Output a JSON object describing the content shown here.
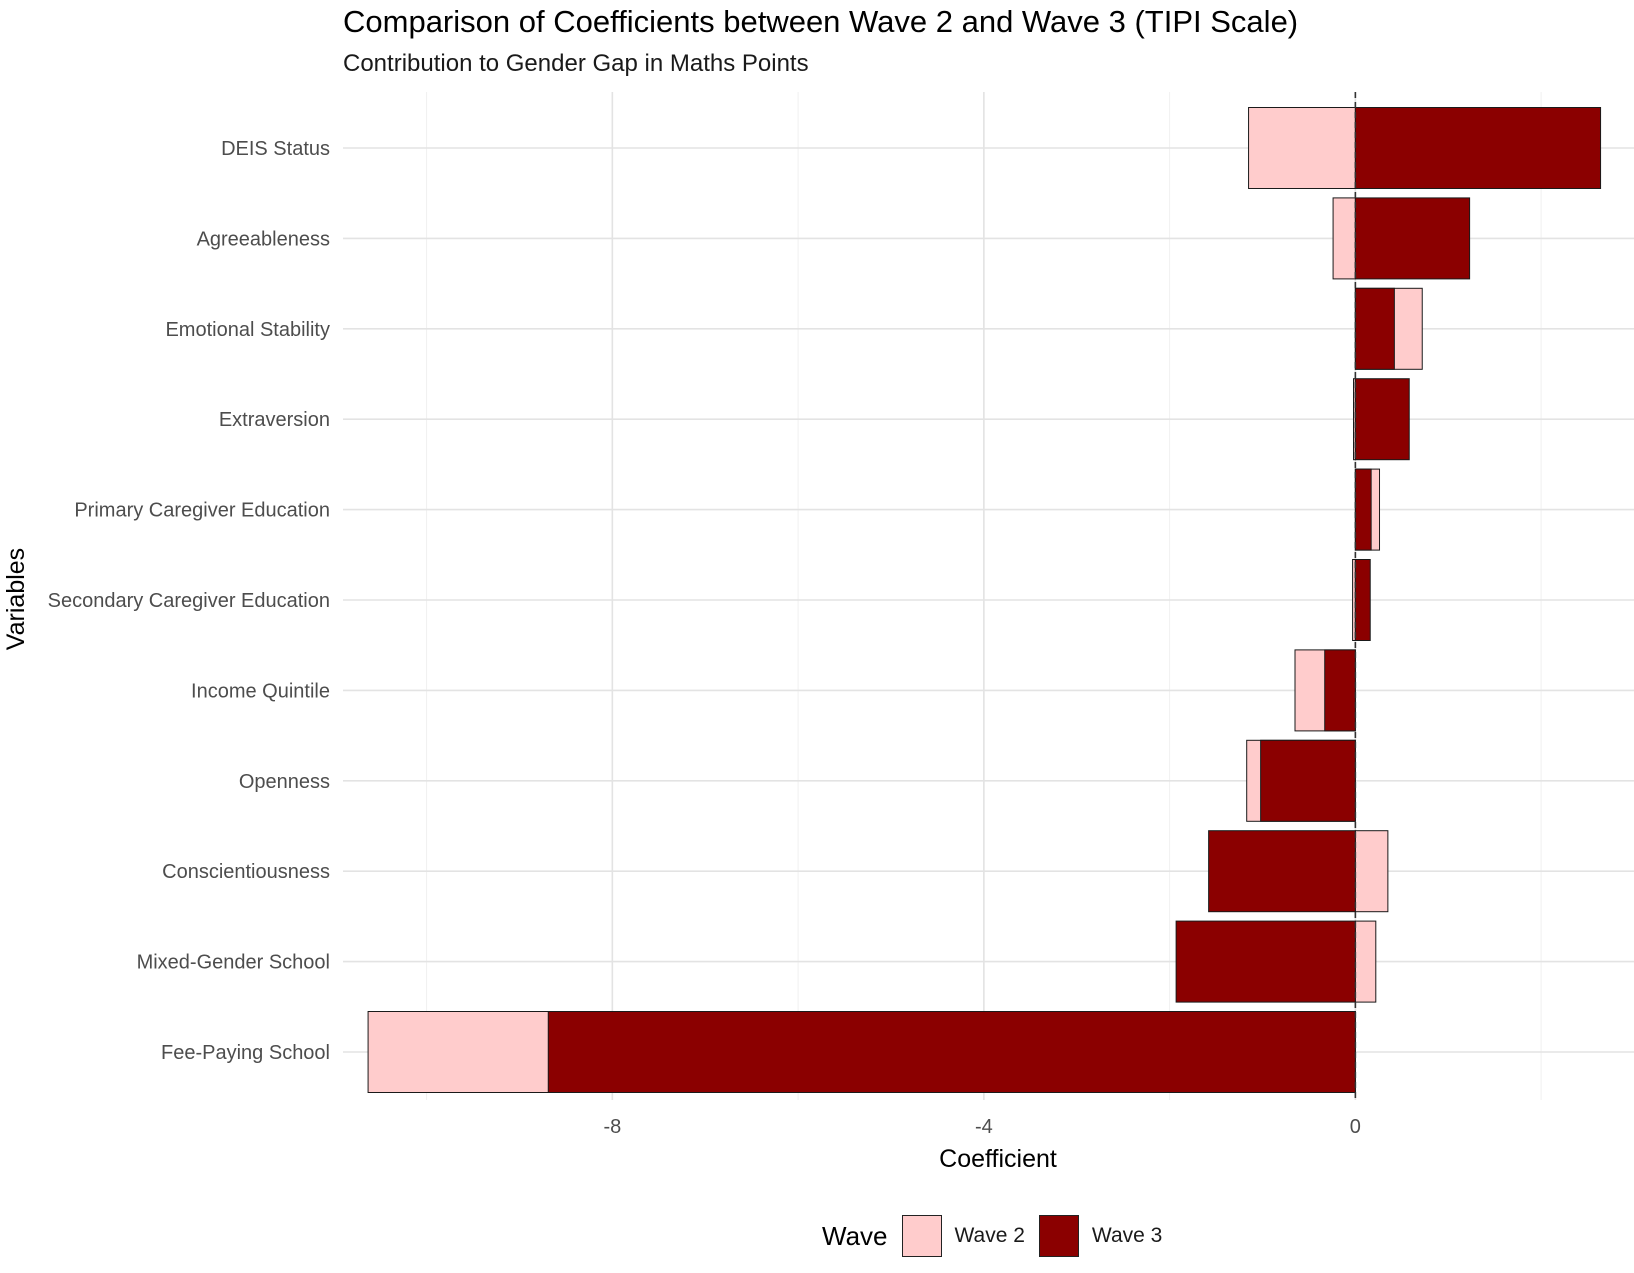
{
  "chart_data": {
    "type": "bar",
    "orientation": "horizontal",
    "title": "Comparison of Coefficients between Wave 2 and Wave 3 (TIPI Scale)",
    "subtitle": "Contribution to Gender Gap in Maths Points",
    "xlabel": "Coefficient",
    "ylabel": "Variables",
    "xlim": [
      -10.9,
      3.0
    ],
    "x_ticks": [
      -8,
      -4,
      0
    ],
    "reference_line": 0,
    "grid": true,
    "legend_position": "bottom",
    "legend_title": "Wave",
    "categories": [
      "DEIS Status",
      "Agreeableness",
      "Emotional Stability",
      "Extraversion",
      "Primary Caregiver Education",
      "Secondary Caregiver Education",
      "Income Quintile",
      "Openness",
      "Conscientiousness",
      "Mixed-Gender School",
      "Fee-Paying School"
    ],
    "series": [
      {
        "name": "Wave 2",
        "color": "#ffcccc",
        "values": [
          -1.15,
          -0.24,
          0.72,
          -0.02,
          0.26,
          -0.03,
          -0.65,
          -1.17,
          0.35,
          0.22,
          -10.63
        ]
      },
      {
        "name": "Wave 3",
        "color": "#8b0000",
        "values": [
          2.64,
          1.23,
          0.42,
          0.58,
          0.17,
          0.16,
          -0.33,
          -1.02,
          -1.58,
          -1.93,
          -8.69
        ]
      }
    ]
  }
}
